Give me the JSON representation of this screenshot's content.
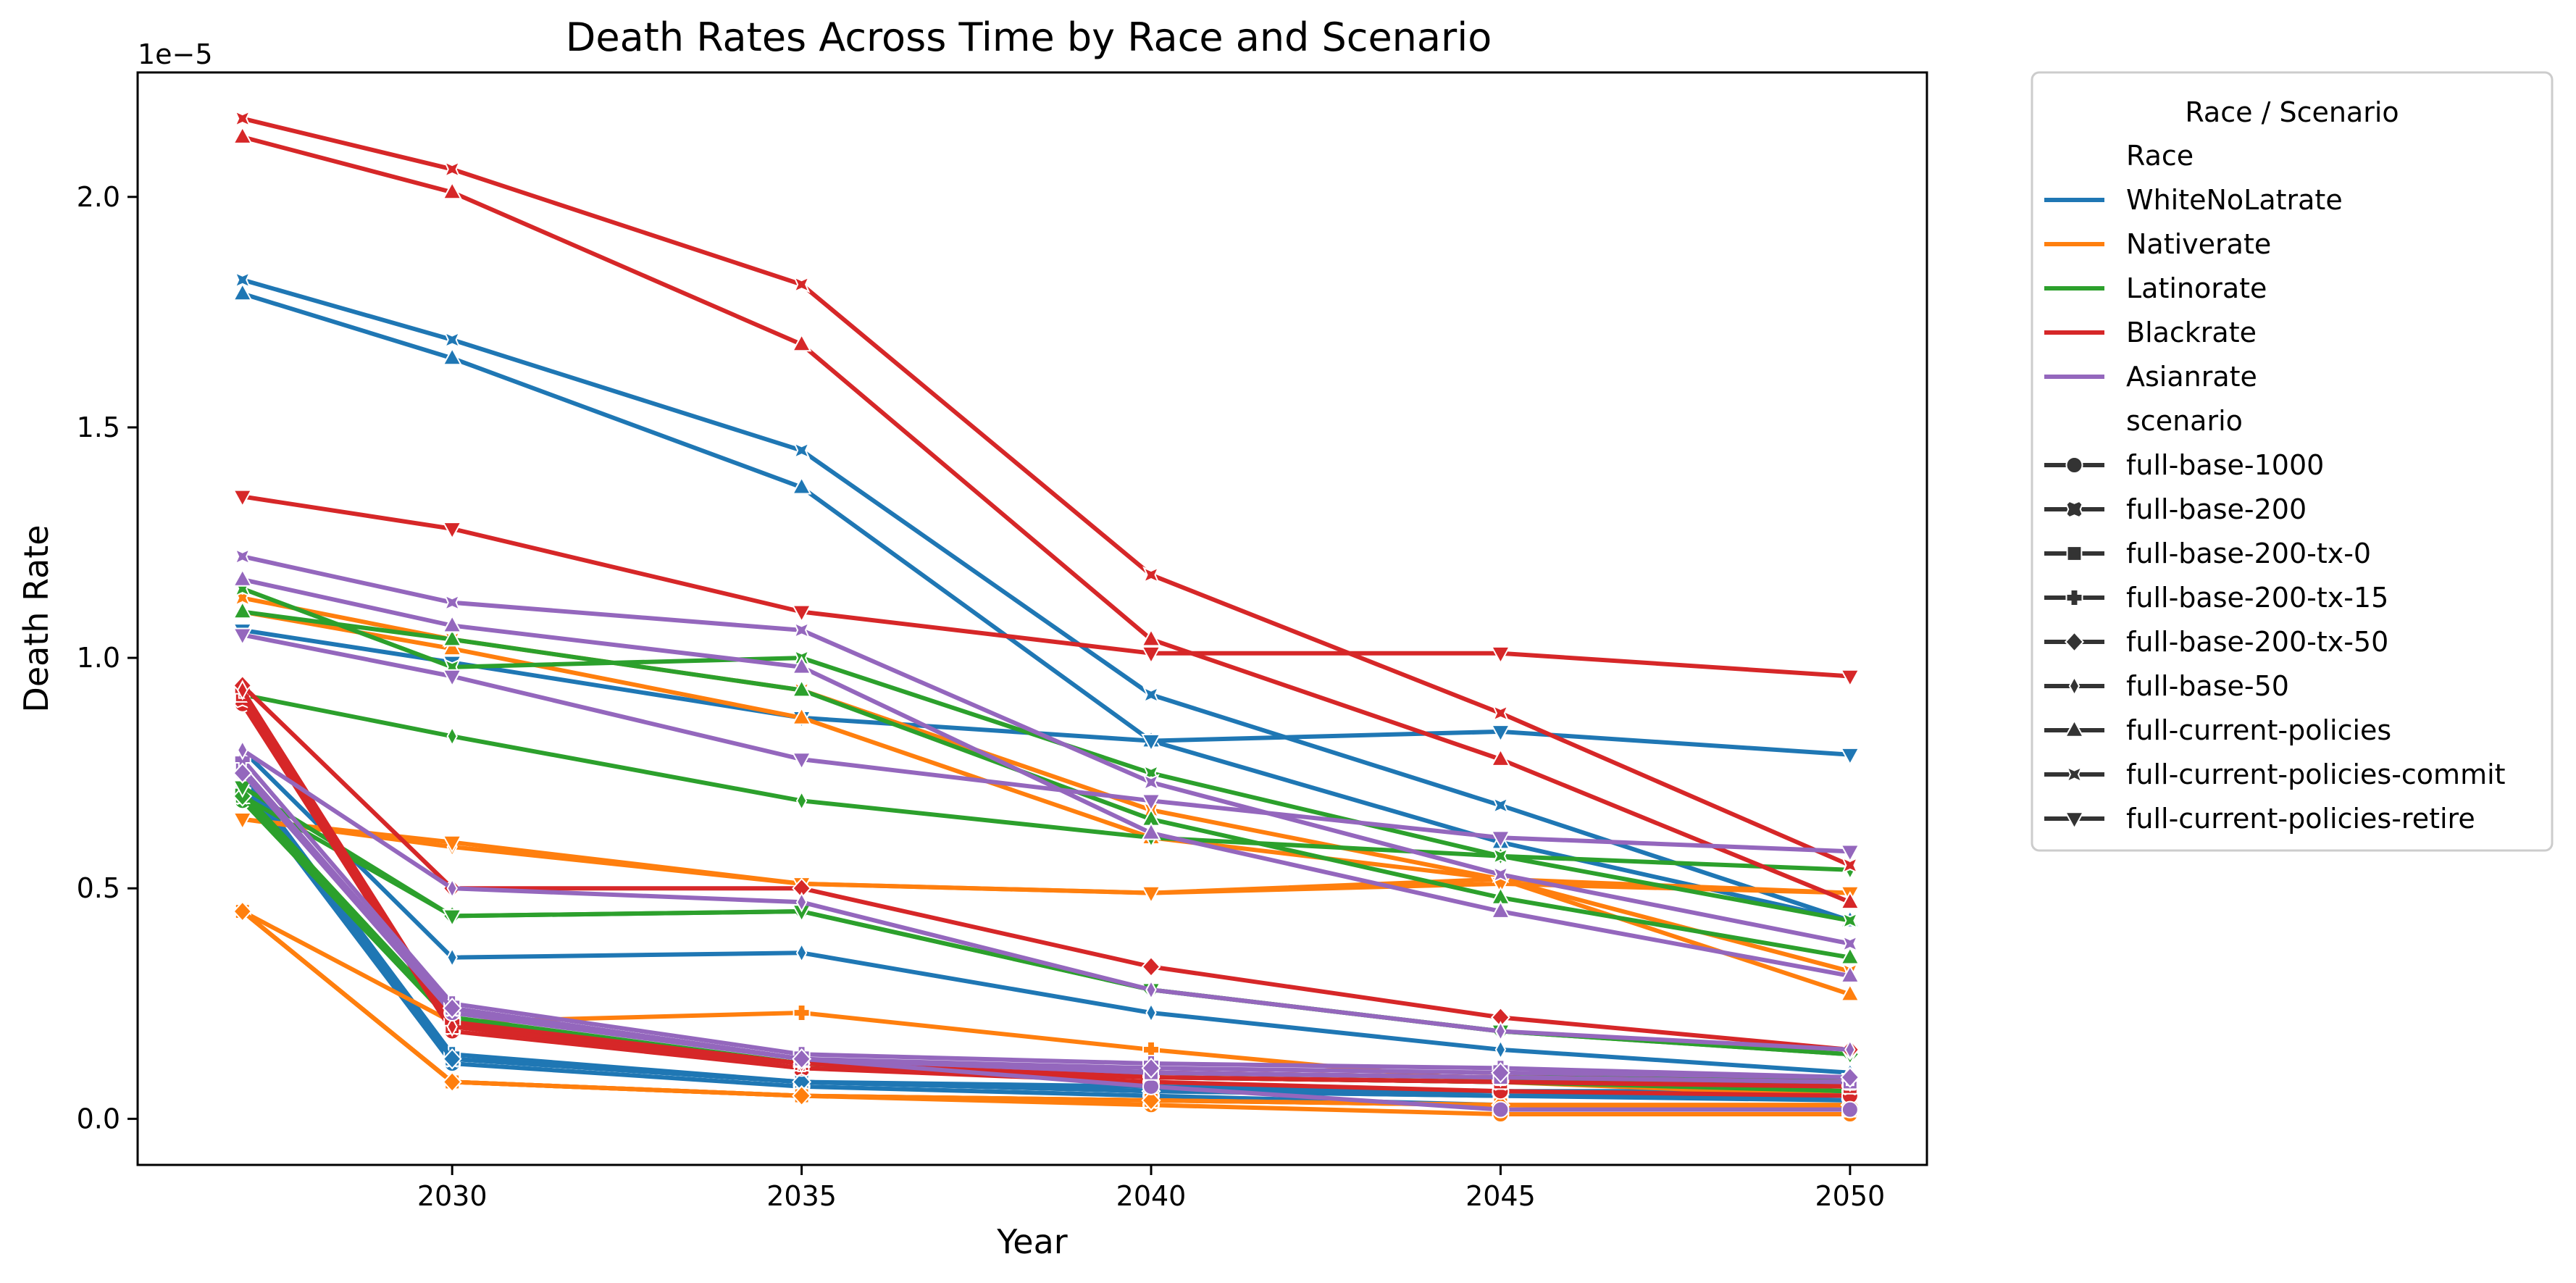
{
  "chart_data": {
    "type": "line",
    "title": "Death Rates Across Time by Race and Scenario",
    "xlabel": "Year",
    "ylabel": "Death Rate",
    "y_scale_label": "1e−5",
    "x": [
      2027,
      2030,
      2035,
      2040,
      2045,
      2050
    ],
    "xticks": [
      2030,
      2035,
      2040,
      2045,
      2050
    ],
    "xlim": [
      2025.5,
      2051.1
    ],
    "yticks": [
      0.0,
      0.5,
      1.0,
      1.5,
      2.0
    ],
    "ytick_labels": [
      "0.0",
      "0.5",
      "1.0",
      "1.5",
      "2.0"
    ],
    "ylim": [
      -0.1,
      2.27
    ],
    "grid": false,
    "legend": {
      "title": "Race / Scenario",
      "placement": "outside-right",
      "race_header": "Race",
      "scenario_header": "scenario",
      "races": [
        {
          "key": "white",
          "label": "WhiteNoLatrate",
          "color": "#1f77b4"
        },
        {
          "key": "native",
          "label": "Nativerate",
          "color": "#ff7f0e"
        },
        {
          "key": "latino",
          "label": "Latinorate",
          "color": "#2ca02c"
        },
        {
          "key": "black",
          "label": "Blackrate",
          "color": "#d62728"
        },
        {
          "key": "asian",
          "label": "Asianrate",
          "color": "#9467bd"
        }
      ],
      "scenarios": [
        {
          "key": "b1000",
          "label": "full-base-1000",
          "marker": "circle"
        },
        {
          "key": "b200",
          "label": "full-base-200",
          "marker": "x"
        },
        {
          "key": "b200tx0",
          "label": "full-base-200-tx-0",
          "marker": "square"
        },
        {
          "key": "b200tx15",
          "label": "full-base-200-tx-15",
          "marker": "plus"
        },
        {
          "key": "b200tx50",
          "label": "full-base-200-tx-50",
          "marker": "diamond"
        },
        {
          "key": "b50",
          "label": "full-base-50",
          "marker": "thin-diamond"
        },
        {
          "key": "cp",
          "label": "full-current-policies",
          "marker": "triangle-up"
        },
        {
          "key": "cpc",
          "label": "full-current-policies-commit",
          "marker": "tri-x"
        },
        {
          "key": "cpr",
          "label": "full-current-policies-retire",
          "marker": "triangle-down"
        }
      ]
    },
    "series": [
      {
        "race": "white",
        "scenario": "b1000",
        "values": [
          0.72,
          0.12,
          0.07,
          0.05,
          0.03,
          0.02
        ]
      },
      {
        "race": "white",
        "scenario": "b200",
        "values": [
          0.74,
          0.13,
          0.08,
          0.06,
          0.05,
          0.05
        ]
      },
      {
        "race": "white",
        "scenario": "b200tx0",
        "values": [
          0.73,
          0.13,
          0.08,
          0.06,
          0.05,
          0.04
        ]
      },
      {
        "race": "white",
        "scenario": "b200tx15",
        "values": [
          0.75,
          0.14,
          0.08,
          0.07,
          0.06,
          0.05
        ]
      },
      {
        "race": "white",
        "scenario": "b200tx50",
        "values": [
          0.73,
          0.13,
          0.08,
          0.06,
          0.06,
          0.06
        ]
      },
      {
        "race": "white",
        "scenario": "b50",
        "values": [
          0.8,
          0.35,
          0.36,
          0.23,
          0.15,
          0.1
        ]
      },
      {
        "race": "white",
        "scenario": "cp",
        "values": [
          1.79,
          1.65,
          1.37,
          0.82,
          0.6,
          0.43
        ]
      },
      {
        "race": "white",
        "scenario": "cpc",
        "values": [
          1.82,
          1.69,
          1.45,
          0.92,
          0.68,
          0.43
        ]
      },
      {
        "race": "white",
        "scenario": "cpr",
        "values": [
          1.06,
          0.99,
          0.87,
          0.82,
          0.84,
          0.79
        ]
      },
      {
        "race": "native",
        "scenario": "b1000",
        "values": [
          0.45,
          0.08,
          0.05,
          0.03,
          0.01,
          0.01
        ]
      },
      {
        "race": "native",
        "scenario": "b200",
        "values": [
          0.45,
          0.08,
          0.05,
          0.04,
          0.03,
          0.03
        ]
      },
      {
        "race": "native",
        "scenario": "b200tx0",
        "values": [
          0.45,
          0.08,
          0.05,
          0.04,
          0.03,
          0.02
        ]
      },
      {
        "race": "native",
        "scenario": "b200tx15",
        "values": [
          0.45,
          0.21,
          0.23,
          0.15,
          0.08,
          0.05
        ]
      },
      {
        "race": "native",
        "scenario": "b200tx50",
        "values": [
          0.45,
          0.08,
          0.05,
          0.04,
          0.03,
          0.03
        ]
      },
      {
        "race": "native",
        "scenario": "b50",
        "values": [
          0.65,
          0.59,
          0.51,
          0.49,
          0.52,
          0.49
        ]
      },
      {
        "race": "native",
        "scenario": "cp",
        "values": [
          1.1,
          1.02,
          0.87,
          0.61,
          0.52,
          0.27
        ]
      },
      {
        "race": "native",
        "scenario": "cpc",
        "values": [
          1.13,
          1.04,
          0.93,
          0.67,
          0.52,
          0.32
        ]
      },
      {
        "race": "native",
        "scenario": "cpr",
        "values": [
          0.65,
          0.6,
          0.51,
          0.49,
          0.51,
          0.49
        ]
      },
      {
        "race": "latino",
        "scenario": "b1000",
        "values": [
          0.69,
          0.21,
          0.12,
          0.09,
          0.08,
          0.06
        ]
      },
      {
        "race": "latino",
        "scenario": "b200",
        "values": [
          0.7,
          0.21,
          0.12,
          0.09,
          0.08,
          0.08
        ]
      },
      {
        "race": "latino",
        "scenario": "b200tx0",
        "values": [
          0.7,
          0.21,
          0.12,
          0.09,
          0.08,
          0.08
        ]
      },
      {
        "race": "latino",
        "scenario": "b200tx15",
        "values": [
          0.71,
          0.22,
          0.12,
          0.1,
          0.09,
          0.09
        ]
      },
      {
        "race": "latino",
        "scenario": "b200tx50",
        "values": [
          0.7,
          0.44,
          0.45,
          0.28,
          0.19,
          0.14
        ]
      },
      {
        "race": "latino",
        "scenario": "b50",
        "values": [
          0.92,
          0.83,
          0.69,
          0.61,
          0.57,
          0.54
        ]
      },
      {
        "race": "latino",
        "scenario": "cp",
        "values": [
          1.1,
          1.04,
          0.93,
          0.65,
          0.48,
          0.35
        ]
      },
      {
        "race": "latino",
        "scenario": "cpc",
        "values": [
          1.15,
          0.98,
          1.0,
          0.75,
          0.57,
          0.43
        ]
      },
      {
        "race": "latino",
        "scenario": "cpr",
        "values": [
          0.72,
          0.44,
          0.45,
          0.28,
          0.19,
          0.14
        ]
      },
      {
        "race": "black",
        "scenario": "b1000",
        "values": [
          0.9,
          0.19,
          0.11,
          0.08,
          0.06,
          0.05
        ]
      },
      {
        "race": "black",
        "scenario": "b200",
        "values": [
          0.91,
          0.2,
          0.11,
          0.09,
          0.08,
          0.07
        ]
      },
      {
        "race": "black",
        "scenario": "b200tx0",
        "values": [
          0.92,
          0.2,
          0.12,
          0.09,
          0.08,
          0.07
        ]
      },
      {
        "race": "black",
        "scenario": "b200tx15",
        "values": [
          0.93,
          0.21,
          0.12,
          0.1,
          0.09,
          0.08
        ]
      },
      {
        "race": "black",
        "scenario": "b200tx50",
        "values": [
          0.94,
          0.5,
          0.5,
          0.33,
          0.22,
          0.15
        ]
      },
      {
        "race": "black",
        "scenario": "b50",
        "values": [
          0.93,
          0.2,
          0.12,
          0.1,
          0.09,
          0.08
        ]
      },
      {
        "race": "black",
        "scenario": "cp",
        "values": [
          2.13,
          2.01,
          1.68,
          1.04,
          0.78,
          0.47
        ]
      },
      {
        "race": "black",
        "scenario": "cpc",
        "values": [
          2.17,
          2.06,
          1.81,
          1.18,
          0.88,
          0.55
        ]
      },
      {
        "race": "black",
        "scenario": "cpr",
        "values": [
          1.35,
          1.28,
          1.1,
          1.01,
          1.01,
          0.96
        ]
      },
      {
        "race": "asian",
        "scenario": "b1000",
        "values": [
          0.75,
          0.23,
          0.13,
          0.07,
          0.02,
          0.02
        ]
      },
      {
        "race": "asian",
        "scenario": "b200",
        "values": [
          0.76,
          0.24,
          0.13,
          0.1,
          0.09,
          0.08
        ]
      },
      {
        "race": "asian",
        "scenario": "b200tx0",
        "values": [
          0.76,
          0.24,
          0.13,
          0.1,
          0.09,
          0.08
        ]
      },
      {
        "race": "asian",
        "scenario": "b200tx15",
        "values": [
          0.78,
          0.25,
          0.14,
          0.12,
          0.11,
          0.09
        ]
      },
      {
        "race": "asian",
        "scenario": "b200tx50",
        "values": [
          0.75,
          0.24,
          0.13,
          0.11,
          0.1,
          0.09
        ]
      },
      {
        "race": "asian",
        "scenario": "b50",
        "values": [
          0.8,
          0.5,
          0.47,
          0.28,
          0.19,
          0.15
        ]
      },
      {
        "race": "asian",
        "scenario": "cp",
        "values": [
          1.17,
          1.07,
          0.98,
          0.62,
          0.45,
          0.31
        ]
      },
      {
        "race": "asian",
        "scenario": "cpc",
        "values": [
          1.22,
          1.12,
          1.06,
          0.73,
          0.53,
          0.38
        ]
      },
      {
        "race": "asian",
        "scenario": "cpr",
        "values": [
          1.05,
          0.96,
          0.78,
          0.69,
          0.61,
          0.58
        ]
      }
    ]
  }
}
